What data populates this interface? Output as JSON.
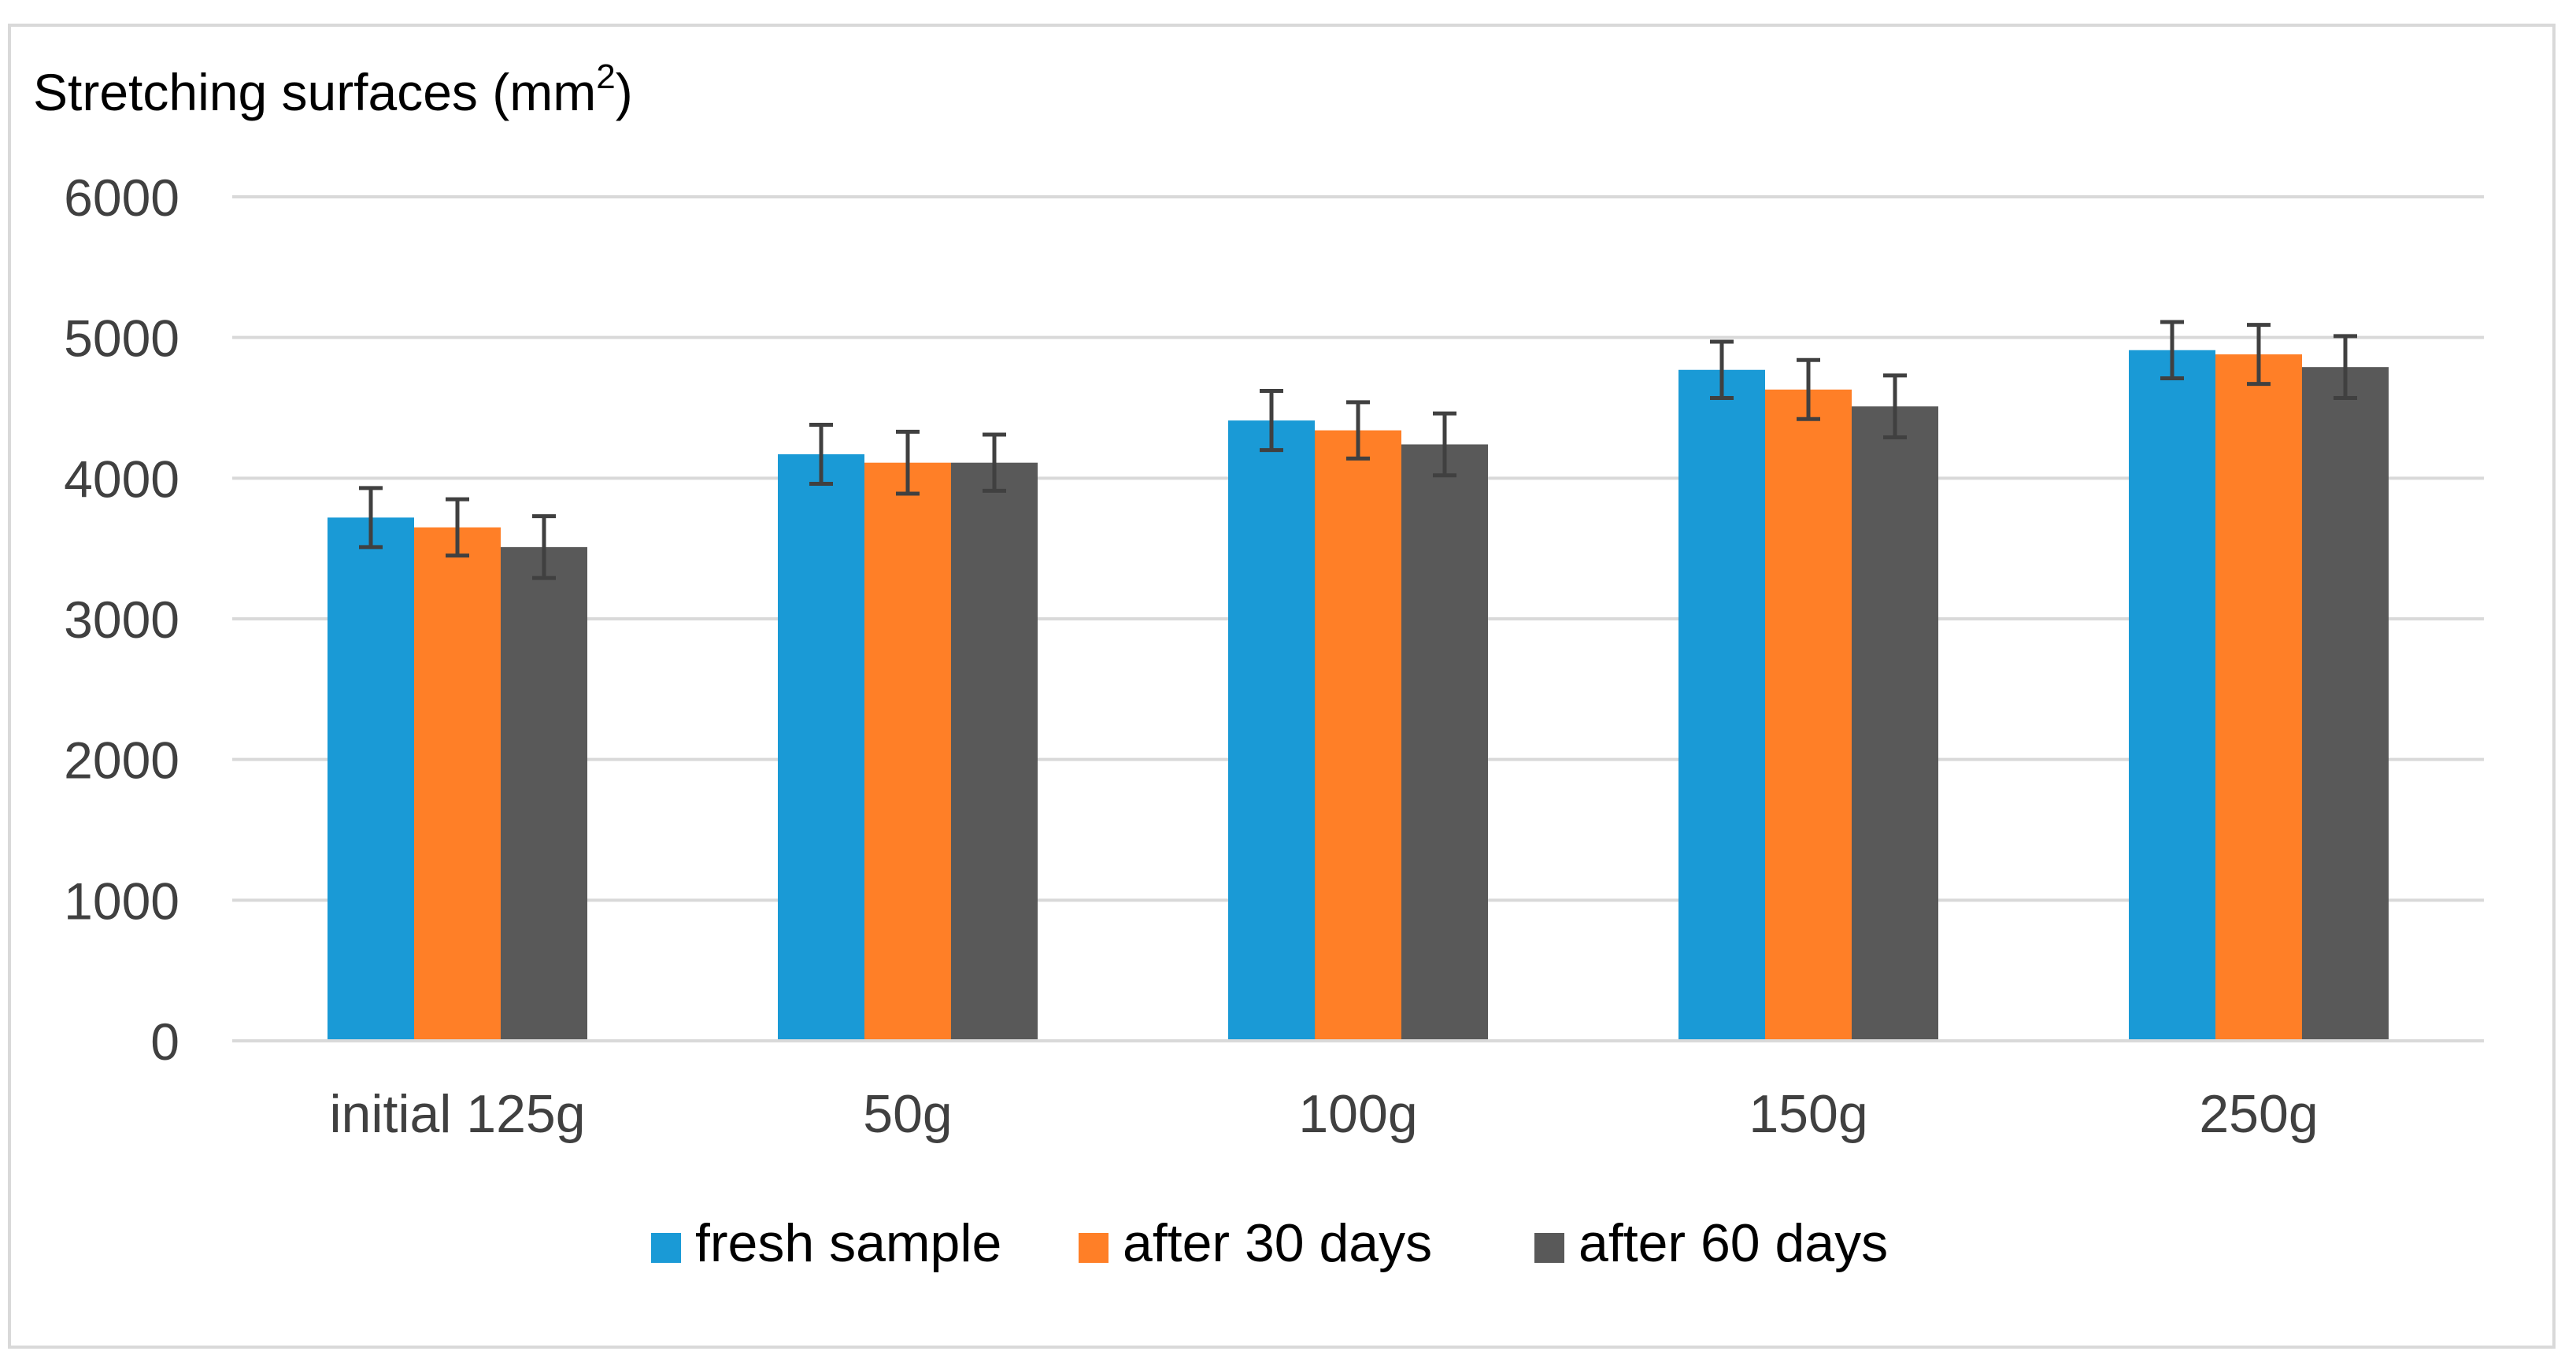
{
  "chart_data": {
    "type": "bar",
    "ylabel": "Stretching surfaces (mm²)",
    "ylabel_base": "Stretching surfaces (mm",
    "ylabel_sup": "2",
    "ylabel_close": ")",
    "categories": [
      "initial 125g",
      "50g",
      "100g",
      "150g",
      "250g"
    ],
    "ylim": [
      0,
      6000
    ],
    "yticks": [
      "0",
      "1000",
      "2000",
      "3000",
      "4000",
      "5000",
      "6000"
    ],
    "grid": true,
    "legend_position": "bottom",
    "series": [
      {
        "name": "fresh sample",
        "color": "#1a9ad6",
        "values": [
          3720,
          4170,
          4410,
          4770,
          4910
        ],
        "errors": [
          210,
          210,
          210,
          200,
          200
        ]
      },
      {
        "name": "after 30 days",
        "color": "#ff7f27",
        "values": [
          3650,
          4110,
          4340,
          4630,
          4880
        ],
        "errors": [
          200,
          220,
          200,
          210,
          210
        ]
      },
      {
        "name": "after 60 days",
        "color": "#595959",
        "values": [
          3510,
          4110,
          4240,
          4510,
          4790
        ],
        "errors": [
          220,
          200,
          220,
          220,
          220
        ]
      }
    ]
  }
}
